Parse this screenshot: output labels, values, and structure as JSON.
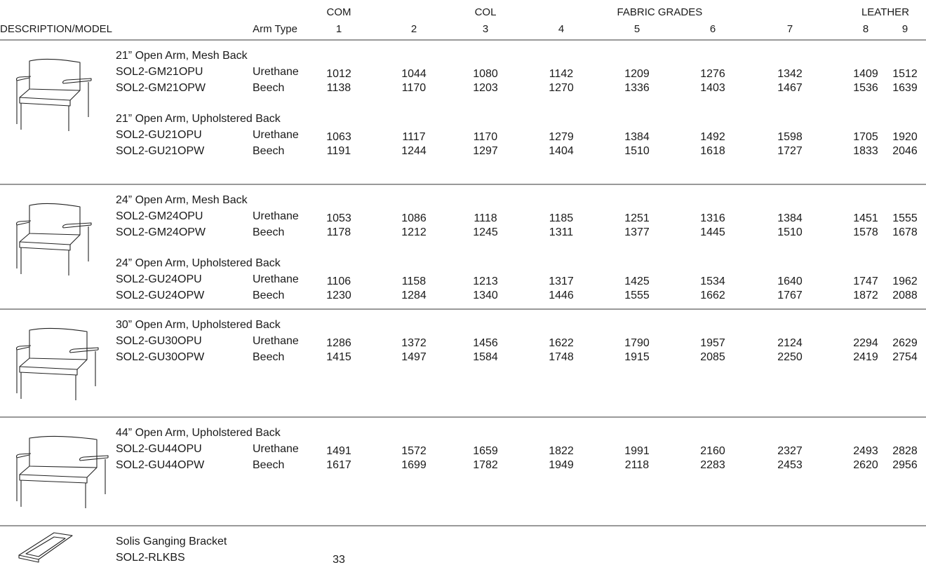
{
  "header": {
    "group_labels": [
      "COM",
      "COL",
      "FABRIC GRADES",
      "LEATHER"
    ],
    "description": "DESCRIPTION/MODEL",
    "arm_type": "Arm Type",
    "grades": [
      1,
      2,
      3,
      4,
      5,
      6,
      7,
      8,
      9
    ]
  },
  "sections": [
    {
      "items": [
        {
          "title": "21” Open Arm, Mesh Back",
          "rows": [
            {
              "model": "SOL2-GM21OPU",
              "arm": "Urethane",
              "prices": [
                1012,
                1044,
                1080,
                1142,
                1209,
                1276,
                1342,
                1409,
                1512
              ]
            },
            {
              "model": "SOL2-GM21OPW",
              "arm": "Beech",
              "prices": [
                1138,
                1170,
                1203,
                1270,
                1336,
                1403,
                1467,
                1536,
                1639
              ]
            }
          ]
        },
        {
          "title": "21” Open Arm, Upholstered Back",
          "rows": [
            {
              "model": "SOL2-GU21OPU",
              "arm": "Urethane",
              "prices": [
                1063,
                1117,
                1170,
                1279,
                1384,
                1492,
                1598,
                1705,
                1920
              ]
            },
            {
              "model": "SOL2-GU21OPW",
              "arm": "Beech",
              "prices": [
                1191,
                1244,
                1297,
                1404,
                1510,
                1618,
                1727,
                1833,
                2046
              ]
            }
          ]
        }
      ]
    },
    {
      "items": [
        {
          "title": "24” Open Arm, Mesh Back",
          "rows": [
            {
              "model": "SOL2-GM24OPU",
              "arm": "Urethane",
              "prices": [
                1053,
                1086,
                1118,
                1185,
                1251,
                1316,
                1384,
                1451,
                1555
              ]
            },
            {
              "model": "SOL2-GM24OPW",
              "arm": "Beech",
              "prices": [
                1178,
                1212,
                1245,
                1311,
                1377,
                1445,
                1510,
                1578,
                1678
              ]
            }
          ]
        },
        {
          "title": "24” Open Arm, Upholstered Back",
          "rows": [
            {
              "model": "SOL2-GU24OPU",
              "arm": "Urethane",
              "prices": [
                1106,
                1158,
                1213,
                1317,
                1425,
                1534,
                1640,
                1747,
                1962
              ]
            },
            {
              "model": "SOL2-GU24OPW",
              "arm": "Beech",
              "prices": [
                1230,
                1284,
                1340,
                1446,
                1555,
                1662,
                1767,
                1872,
                2088
              ]
            }
          ]
        }
      ]
    },
    {
      "items": [
        {
          "title": "30” Open Arm, Upholstered Back",
          "rows": [
            {
              "model": "SOL2-GU30OPU",
              "arm": "Urethane",
              "prices": [
                1286,
                1372,
                1456,
                1622,
                1790,
                1957,
                2124,
                2294,
                2629
              ]
            },
            {
              "model": "SOL2-GU30OPW",
              "arm": "Beech",
              "prices": [
                1415,
                1497,
                1584,
                1748,
                1915,
                2085,
                2250,
                2419,
                2754
              ]
            }
          ]
        }
      ]
    },
    {
      "items": [
        {
          "title": "44” Open Arm, Upholstered Back",
          "rows": [
            {
              "model": "SOL2-GU44OPU",
              "arm": "Urethane",
              "prices": [
                1491,
                1572,
                1659,
                1822,
                1991,
                2160,
                2327,
                2493,
                2828
              ]
            },
            {
              "model": "SOL2-GU44OPW",
              "arm": "Beech",
              "prices": [
                1617,
                1699,
                1782,
                1949,
                2118,
                2283,
                2453,
                2620,
                2956
              ]
            }
          ]
        }
      ]
    },
    {
      "items": [
        {
          "title": "Solis Ganging Bracket",
          "rows": [
            {
              "model": "SOL2-RLKBS",
              "prices": [
                33
              ]
            }
          ]
        }
      ]
    }
  ]
}
